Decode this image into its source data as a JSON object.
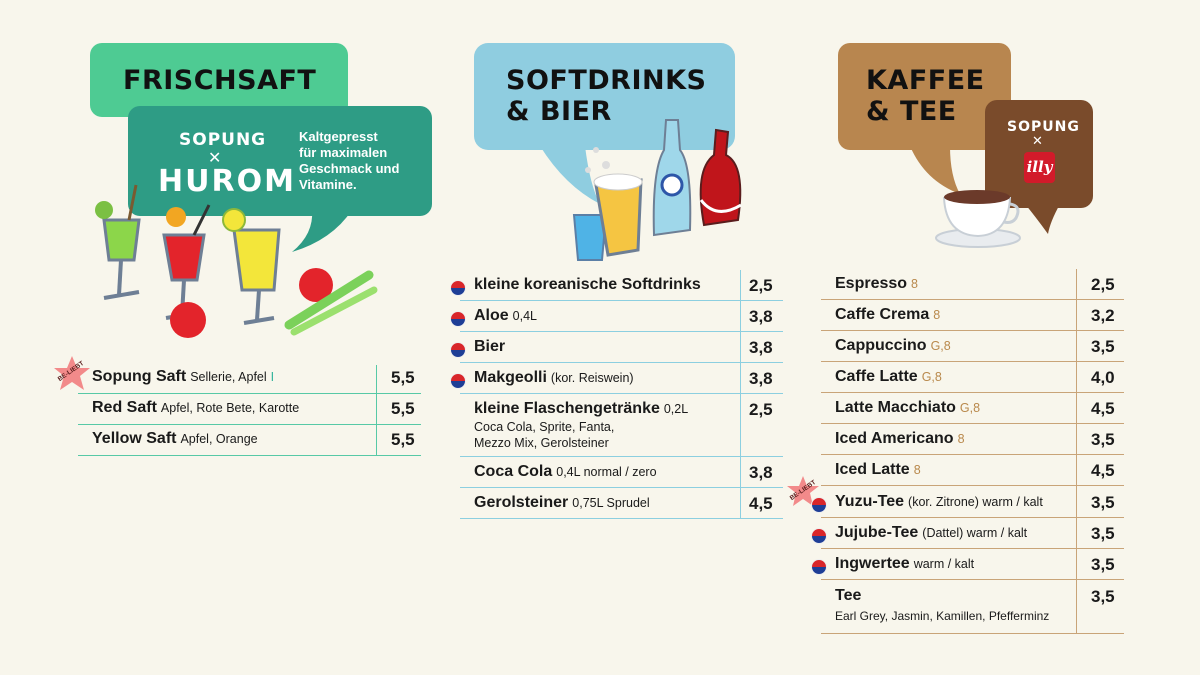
{
  "sections": {
    "frischsaft": {
      "title": "FRISCHSAFT",
      "brand_top": "SOPUNG",
      "brand_x": "✕",
      "brand_bottom": "HUROM",
      "promo": [
        "Kaltgepresst",
        "für maximalen",
        "Geschmack und",
        "Vitamine."
      ],
      "color_header": "#4ecb93",
      "color_promo": "#2e9c85",
      "items": [
        {
          "name": "Sopung Saft",
          "note": "Sellerie, Apfel",
          "mark": "I",
          "price": "5,5",
          "badge": "BE-LIEBT"
        },
        {
          "name": "Red Saft",
          "note": "Apfel, Rote Bete, Karotte",
          "price": "5,5"
        },
        {
          "name": "Yellow Saft",
          "note": "Apfel, Orange",
          "price": "5,5"
        }
      ]
    },
    "softdrinks": {
      "title_lines": [
        "SOFTDRINKS",
        "& BIER"
      ],
      "color_header": "#8fcde0",
      "items": [
        {
          "name": "kleine koreanische Softdrinks",
          "note": "",
          "price": "2,5",
          "flag": true
        },
        {
          "name": "Aloe",
          "note": "0,4L",
          "price": "3,8",
          "flag": true
        },
        {
          "name": "Bier",
          "note": "",
          "price": "3,8",
          "flag": true
        },
        {
          "name": "Makgeolli",
          "note": "(kor. Reiswein)",
          "price": "3,8",
          "flag": true
        },
        {
          "name": "kleine Flaschengetränke",
          "note": "0,2L",
          "sub": [
            "Coca Cola, Sprite, Fanta,",
            "Mezzo Mix, Gerolsteiner"
          ],
          "price": "2,5"
        },
        {
          "name": "Coca Cola",
          "note": "0,4L  normal / zero",
          "price": "3,8"
        },
        {
          "name": "Gerolsteiner",
          "note": "0,75L  Sprudel",
          "price": "4,5"
        }
      ]
    },
    "kaffee": {
      "title_lines": [
        "KAFFEE",
        "& TEE"
      ],
      "brand_top": "SOPUNG",
      "brand_x": "✕",
      "brand_logo": "illy",
      "color_header": "#b8864f",
      "color_brand": "#7a4b2b",
      "items": [
        {
          "name": "Espresso",
          "note": "8",
          "price": "2,5"
        },
        {
          "name": "Caffe Crema",
          "note": "8",
          "price": "3,2"
        },
        {
          "name": "Cappuccino",
          "note": "G,8",
          "price": "3,5"
        },
        {
          "name": "Caffe Latte",
          "note": "G,8",
          "price": "4,0"
        },
        {
          "name": "Latte Macchiato",
          "note": "G,8",
          "price": "4,5"
        },
        {
          "name": "Iced Americano",
          "note": "8",
          "price": "3,5"
        },
        {
          "name": "Iced Latte",
          "note": "8",
          "price": "4,5"
        },
        {
          "name": "Yuzu-Tee",
          "note": "(kor. Zitrone) warm / kalt",
          "price": "3,5",
          "flag": true,
          "badge": "BE-LIEBT"
        },
        {
          "name": "Jujube-Tee",
          "note": "(Dattel) warm / kalt",
          "price": "3,5",
          "flag": true
        },
        {
          "name": "Ingwertee",
          "note": "warm / kalt",
          "price": "3,5",
          "flag": true
        },
        {
          "name": "Tee",
          "note": "",
          "sub": [
            "Earl Grey, Jasmin, Kamillen, Pfefferminz"
          ],
          "price": "3,5"
        }
      ]
    }
  }
}
